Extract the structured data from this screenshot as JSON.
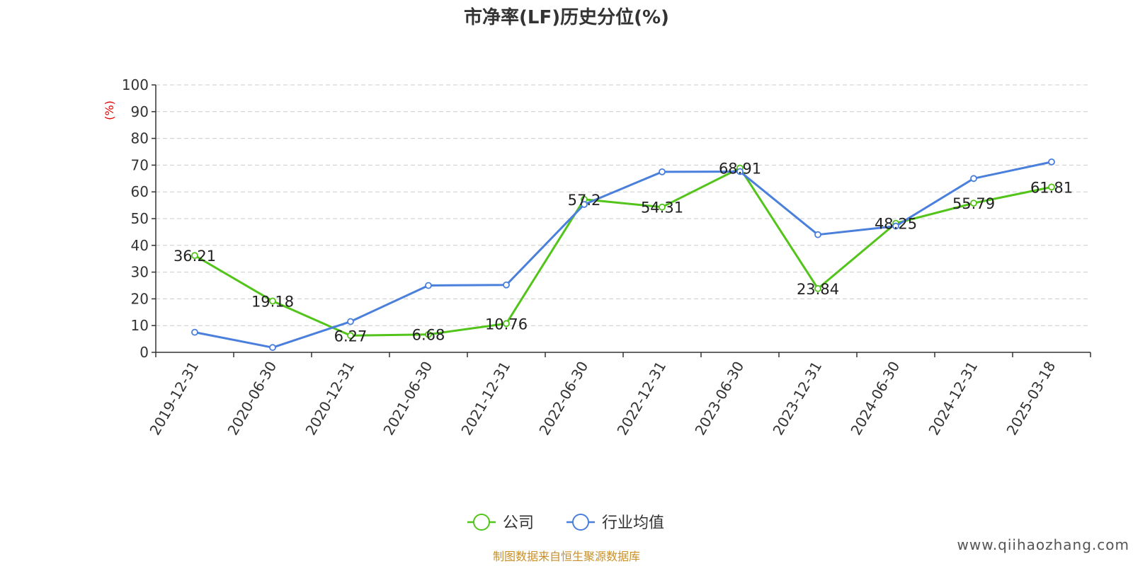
{
  "chart_data": {
    "type": "line",
    "title": "市净率(LF)历史分位(%)",
    "ylabel": "(%)",
    "xlabel": "",
    "ylim": [
      0,
      100
    ],
    "yticks": [
      0,
      10,
      20,
      30,
      40,
      50,
      60,
      70,
      80,
      90,
      100
    ],
    "grid": true,
    "legend_position": "bottom-center",
    "categories": [
      "2019-12-31",
      "2020-06-30",
      "2020-12-31",
      "2021-06-30",
      "2021-12-31",
      "2022-06-30",
      "2022-12-31",
      "2023-06-30",
      "2023-12-31",
      "2024-06-30",
      "2024-12-31",
      "2025-03-18"
    ],
    "series": [
      {
        "name": "公司",
        "color": "#52c41a",
        "values": [
          36.21,
          19.18,
          6.27,
          6.68,
          10.76,
          57.2,
          54.31,
          68.91,
          23.84,
          48.25,
          55.79,
          61.81
        ],
        "labels": [
          "36.21",
          "19.18",
          "6.27",
          "6.68",
          "10.76",
          "57.2",
          "54.31",
          "68.91",
          "23.84",
          "48.25",
          "55.79",
          "61.81"
        ]
      },
      {
        "name": "行业均值",
        "color": "#4a7fdb",
        "values": [
          7.5,
          1.8,
          11.5,
          25.0,
          25.2,
          55.3,
          67.5,
          67.6,
          44.0,
          47.2,
          65.0,
          71.2
        ]
      }
    ]
  },
  "source_note": "制图数据来自恒生聚源数据库",
  "watermark": "www.qiihaozhang.com"
}
